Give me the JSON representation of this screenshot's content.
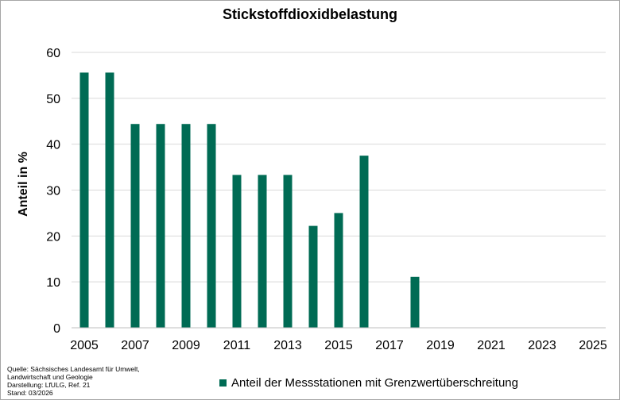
{
  "colors": {
    "bar": "#006b54",
    "grid": "#d9d9d9",
    "axis": "#bfbfbf"
  },
  "source": [
    "Quelle: Sächsisches Landesamt für Umwelt,",
    "Landwirtschaft und Geologie",
    "Darstellung: LfULG, Ref. 21",
    "Stand: 03/2026"
  ],
  "chart_data": {
    "type": "bar",
    "title": "Stickstoffdioxidbelastung",
    "xlabel": "",
    "ylabel": "Anteil in %",
    "ylim": [
      0,
      60
    ],
    "yticks": [
      0,
      10,
      20,
      30,
      40,
      50,
      60
    ],
    "xtick_labels": [
      "2005",
      "2007",
      "2009",
      "2011",
      "2013",
      "2015",
      "2017",
      "2019",
      "2021",
      "2023",
      "2025"
    ],
    "grid": true,
    "legend_position": "bottom",
    "categories": [
      "2005",
      "2006",
      "2007",
      "2008",
      "2009",
      "2010",
      "2011",
      "2012",
      "2013",
      "2014",
      "2015",
      "2016",
      "2017",
      "2018",
      "2019",
      "2020",
      "2021",
      "2022",
      "2023",
      "2024",
      "2025"
    ],
    "series": [
      {
        "name": "Anteil der Messstationen mit Grenzwertüberschreitung",
        "values": [
          55.6,
          55.6,
          44.4,
          44.4,
          44.4,
          44.4,
          33.3,
          33.3,
          33.3,
          22.2,
          25.0,
          37.5,
          0,
          11.1,
          0,
          0,
          0,
          0,
          0,
          0,
          0
        ]
      }
    ]
  }
}
